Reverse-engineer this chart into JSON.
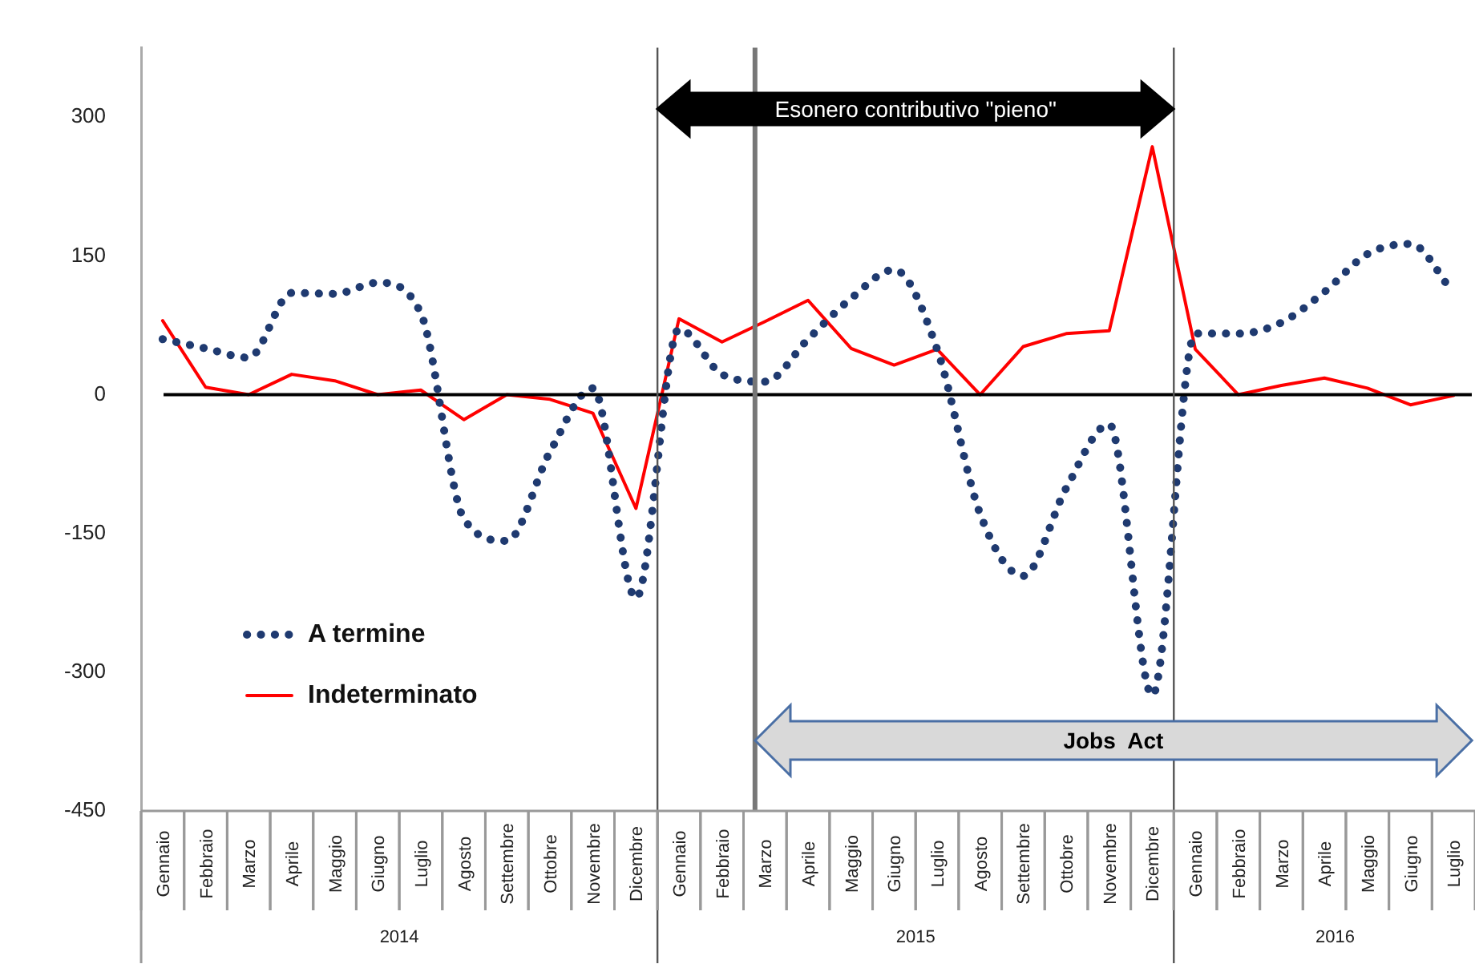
{
  "chart_data": {
    "type": "line",
    "x": [
      "2014-01",
      "2014-02",
      "2014-03",
      "2014-04",
      "2014-05",
      "2014-06",
      "2014-07",
      "2014-08",
      "2014-09",
      "2014-10",
      "2014-11",
      "2014-12",
      "2015-01",
      "2015-02",
      "2015-03",
      "2015-04",
      "2015-05",
      "2015-06",
      "2015-07",
      "2015-08",
      "2015-09",
      "2015-10",
      "2015-11",
      "2015-12",
      "2016-01",
      "2016-02",
      "2016-03",
      "2016-04",
      "2016-05",
      "2016-06",
      "2016-07"
    ],
    "xlim": [
      "2013-12-16",
      "2016-07-16"
    ],
    "xticks": [
      {
        "value": "2014-01",
        "label": "Gennaio"
      },
      {
        "value": "2014-02",
        "label": "Febbraio"
      },
      {
        "value": "2014-03",
        "label": "Marzo"
      },
      {
        "value": "2014-04",
        "label": "Aprile"
      },
      {
        "value": "2014-05",
        "label": "Maggio"
      },
      {
        "value": "2014-06",
        "label": "Giugno"
      },
      {
        "value": "2014-07",
        "label": "Luglio"
      },
      {
        "value": "2014-08",
        "label": "Agosto"
      },
      {
        "value": "2014-09",
        "label": "Settembre"
      },
      {
        "value": "2014-10",
        "label": "Ottobre"
      },
      {
        "value": "2014-11",
        "label": "Novembre"
      },
      {
        "value": "2014-12",
        "label": "Dicembre"
      },
      {
        "value": "2015-01",
        "label": "Gennaio"
      },
      {
        "value": "2015-02",
        "label": "Febbraio"
      },
      {
        "value": "2015-03",
        "label": "Marzo"
      },
      {
        "value": "2015-04",
        "label": "Aprile"
      },
      {
        "value": "2015-05",
        "label": "Maggio"
      },
      {
        "value": "2015-06",
        "label": "Giugno"
      },
      {
        "value": "2015-07",
        "label": "Luglio"
      },
      {
        "value": "2015-08",
        "label": "Agosto"
      },
      {
        "value": "2015-09",
        "label": "Settembre"
      },
      {
        "value": "2015-10",
        "label": "Ottobre"
      },
      {
        "value": "2015-11",
        "label": "Novembre"
      },
      {
        "value": "2015-12",
        "label": "Dicembre"
      },
      {
        "value": "2016-01",
        "label": "Gennaio"
      },
      {
        "value": "2016-02",
        "label": "Febbraio"
      },
      {
        "value": "2016-03",
        "label": "Marzo"
      },
      {
        "value": "2016-04",
        "label": "Aprile"
      },
      {
        "value": "2016-05",
        "label": "Maggio"
      },
      {
        "value": "2016-06",
        "label": "Giugno"
      },
      {
        "value": "2016-07",
        "label": "Luglio"
      }
    ],
    "ylim": [
      -450,
      375
    ],
    "yticks": [
      -450,
      -300,
      -150,
      0,
      150,
      300
    ],
    "series": [
      {
        "name": "A termine",
        "color": "#1f3a70",
        "line_style": "dotted",
        "values": [
          60,
          50,
          40,
          110,
          109,
          121,
          88,
          -134,
          -158,
          -62,
          7,
          -220,
          71,
          22,
          14,
          60,
          104,
          135,
          49,
          -129,
          -196,
          -101,
          -32,
          -325,
          66,
          66,
          78,
          111,
          152,
          163,
          110
        ]
      },
      {
        "name": "Indeterminato",
        "color": "#ff0000",
        "line_style": "solid",
        "values": [
          80,
          8,
          0,
          22,
          15,
          0,
          5,
          -27,
          0,
          -5,
          -20,
          -123,
          82,
          57,
          79,
          102,
          50,
          32,
          49,
          0,
          52,
          66,
          69,
          268,
          49,
          0,
          10,
          18,
          7,
          -11,
          -1
        ]
      }
    ],
    "ref_lines": [
      {
        "axis": "y",
        "value": 0,
        "color": "#000000"
      },
      {
        "axis": "x",
        "value": "2014-12-16",
        "color": "#555555"
      },
      {
        "axis": "x",
        "value": "2015-02-24",
        "color": "#777777"
      },
      {
        "axis": "x",
        "value": "2015-12-16",
        "color": "#555555"
      }
    ],
    "annotations": [
      "Esonero contributivo \"pieno\"",
      "Jobs  Act",
      "2014",
      "2015",
      "2016"
    ],
    "legend": "bottom left",
    "grid": false,
    "marker": "none"
  }
}
